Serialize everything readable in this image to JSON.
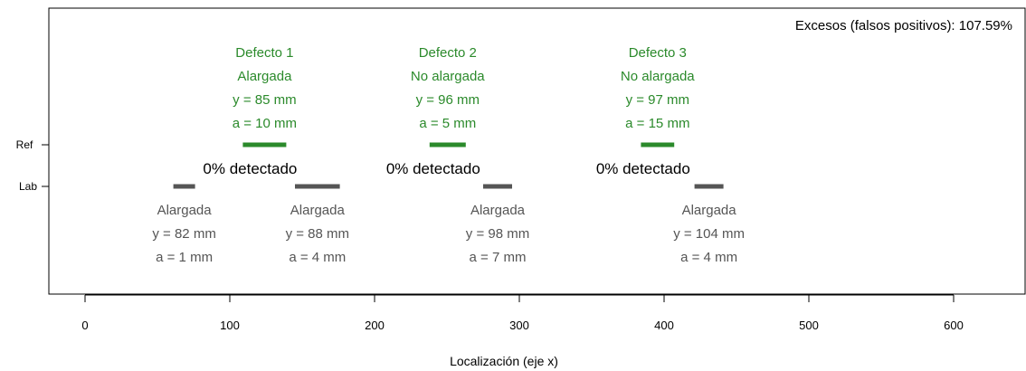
{
  "chart_data": {
    "type": "segment",
    "xlabel": "Localización (eje x)",
    "xlim": [
      -25,
      650
    ],
    "x_ticks": [
      0,
      100,
      200,
      300,
      400,
      500,
      600
    ],
    "rows": [
      "Ref",
      "Lab"
    ],
    "annotation": "Excesos (falsos positivos): 107.59%",
    "colors": {
      "ref": "#2b8a2b",
      "lab": "#555555"
    },
    "ref_defects": [
      {
        "label": "Defecto  1",
        "tipo": "Alargada",
        "y": "y = 85 mm",
        "a": "a = 10 mm",
        "start": 109,
        "end": 139,
        "detected": "0% detectado"
      },
      {
        "label": "Defecto 2",
        "tipo": "No alargada",
        "y": "y = 96 mm",
        "a": "a = 5 mm",
        "start": 238,
        "end": 263,
        "detected": "0% detectado"
      },
      {
        "label": "Defecto 3",
        "tipo": "No alargada",
        "y": "y = 97 mm",
        "a": "a = 15 mm",
        "start": 384,
        "end": 407,
        "detected": "0% detectado"
      }
    ],
    "lab_defects": [
      {
        "tipo": "Alargada",
        "y": "y = 82 mm",
        "a": "a = 1 mm",
        "start": 61,
        "end": 76
      },
      {
        "tipo": "Alargada",
        "y": "y = 88 mm",
        "a": "a = 4 mm",
        "start": 145,
        "end": 176
      },
      {
        "tipo": "Alargada",
        "y": "y = 98 mm",
        "a": "a = 7 mm",
        "start": 275,
        "end": 295
      },
      {
        "tipo": "Alargada",
        "y": "y = 104 mm",
        "a": "a = 4 mm",
        "start": 421,
        "end": 441
      }
    ]
  }
}
